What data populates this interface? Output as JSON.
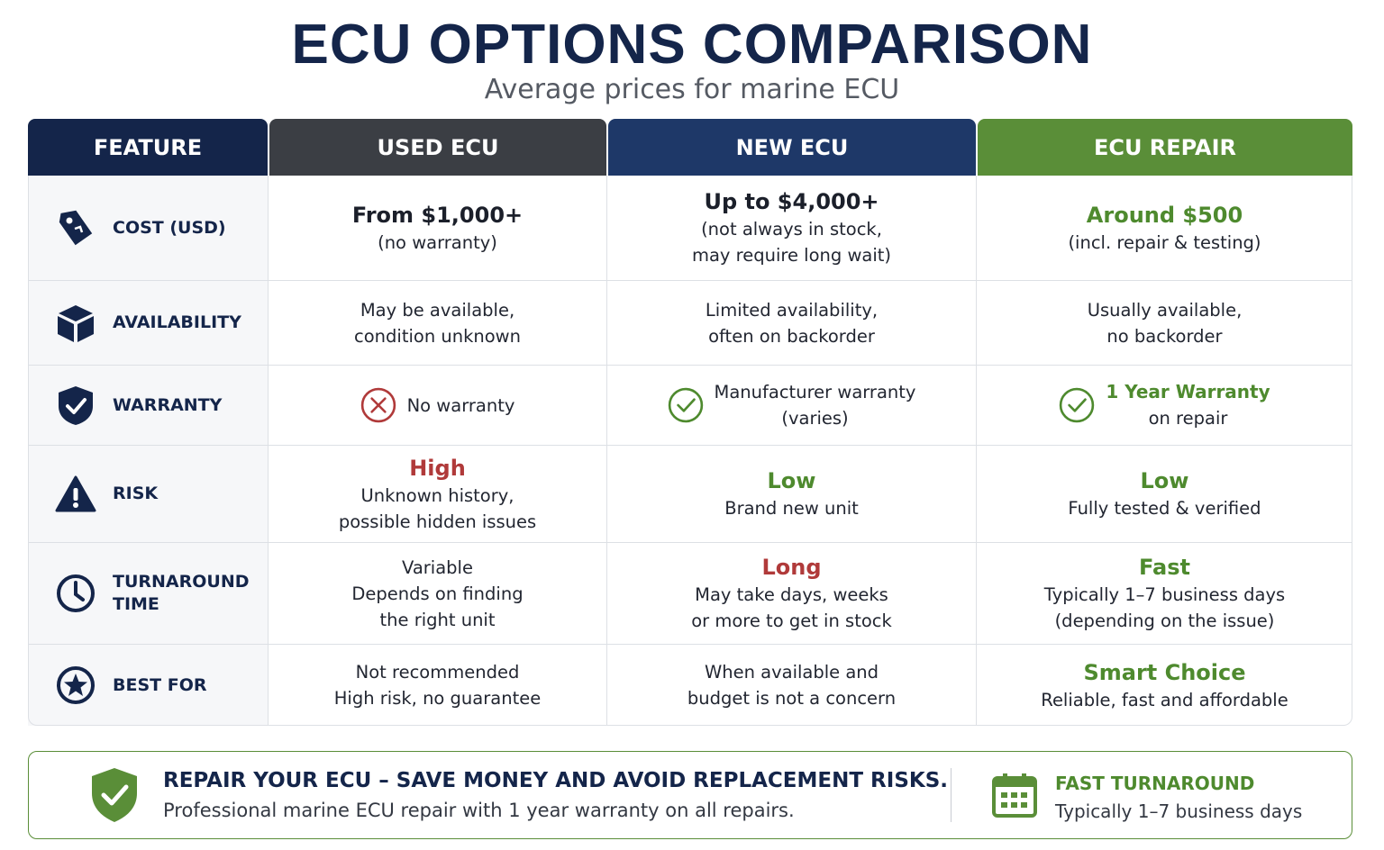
{
  "header": {
    "title": "ECU OPTIONS COMPARISON",
    "subtitle": "Average prices for marine ECU"
  },
  "table": {
    "columns": [
      {
        "label": "FEATURE",
        "color": "#14254a"
      },
      {
        "label": "USED ECU",
        "color": "#3b3e44"
      },
      {
        "label": "NEW ECU",
        "color": "#1e3868"
      },
      {
        "label": "ECU REPAIR",
        "color": "#5a8e38"
      }
    ],
    "rows": [
      {
        "feature": "COST (USD)",
        "cells": [
          {
            "headline": "From $1,000+",
            "color": "#1b1f2a",
            "lines": [
              "(no warranty)"
            ]
          },
          {
            "headline": "Up to $4,000+",
            "color": "#1b1f2a",
            "lines": [
              "(not always in stock,",
              "may require long wait)"
            ]
          },
          {
            "headline": "Around $500",
            "color": "#4e8a2e",
            "lines": [
              "(incl. repair & testing)"
            ]
          }
        ]
      },
      {
        "feature": "AVAILABILITY",
        "cells": [
          {
            "lines": [
              "May be available,",
              "condition unknown"
            ]
          },
          {
            "lines": [
              "Limited availability,",
              "often on backorder"
            ]
          },
          {
            "lines": [
              "Usually available,",
              "no backorder"
            ]
          }
        ]
      },
      {
        "feature": "WARRANTY",
        "cells": [
          {
            "lines": [
              "No warranty"
            ]
          },
          {
            "lines": [
              "Manufacturer warranty",
              "(varies)"
            ]
          },
          {
            "headline": "1 Year Warranty",
            "color": "#4e8a2e",
            "lines": [
              "on repair"
            ]
          }
        ]
      },
      {
        "feature": "RISK",
        "cells": [
          {
            "headline": "High",
            "color": "#b03a3a",
            "lines": [
              "Unknown history,",
              "possible hidden issues"
            ]
          },
          {
            "headline": "Low",
            "color": "#4e8a2e",
            "lines": [
              "Brand new unit"
            ]
          },
          {
            "headline": "Low",
            "color": "#4e8a2e",
            "lines": [
              "Fully tested & verified"
            ]
          }
        ]
      },
      {
        "feature": "TURNAROUND TIME",
        "cells": [
          {
            "lines": [
              "Variable",
              "Depends on finding",
              "the right unit"
            ]
          },
          {
            "headline": "Long",
            "color": "#b03a3a",
            "lines": [
              "May take days, weeks",
              "or more to get in stock"
            ]
          },
          {
            "headline": "Fast",
            "color": "#4e8a2e",
            "lines": [
              "Typically 1–7 business days",
              "(depending on the issue)"
            ]
          }
        ]
      },
      {
        "feature": "BEST FOR",
        "cells": [
          {
            "lines": [
              "Not recommended",
              "High risk, no guarantee"
            ]
          },
          {
            "lines": [
              "When available and",
              "budget is not a concern"
            ]
          },
          {
            "headline": "Smart Choice",
            "color": "#4e8a2e",
            "lines": [
              "Reliable, fast and affordable"
            ]
          }
        ]
      }
    ]
  },
  "footer": {
    "title": "REPAIR YOUR ECU – SAVE MONEY AND AVOID REPLACEMENT RISKS.",
    "text": "Professional marine ECU repair with 1 year warranty on all repairs.",
    "badge_title": "FAST TURNAROUND",
    "badge_text": "Typically 1–7 business days"
  }
}
